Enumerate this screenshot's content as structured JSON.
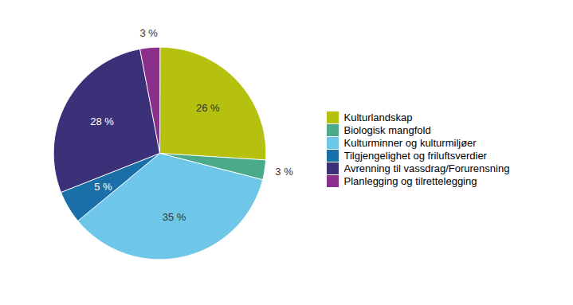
{
  "chart_data": {
    "type": "pie",
    "categories": [
      "Kulturlandskap",
      "Biologisk mangfold",
      "Kulturminner og kulturmiljøer",
      "Tilgjengelighet og friluftsverdier",
      "Avrenning til vassdrag/Forurensning",
      "Planlegging og tilrettelegging"
    ],
    "values": [
      26,
      3,
      35,
      5,
      28,
      3
    ],
    "value_labels": [
      "26 %",
      "3 %",
      "35 %",
      "5 %",
      "28 %",
      "3 %"
    ],
    "colors": [
      "#b5c10e",
      "#4aaa8a",
      "#6ec6e8",
      "#1a6fa8",
      "#3b3178",
      "#8b2f8b"
    ],
    "data_labels": true,
    "legend": "right"
  }
}
